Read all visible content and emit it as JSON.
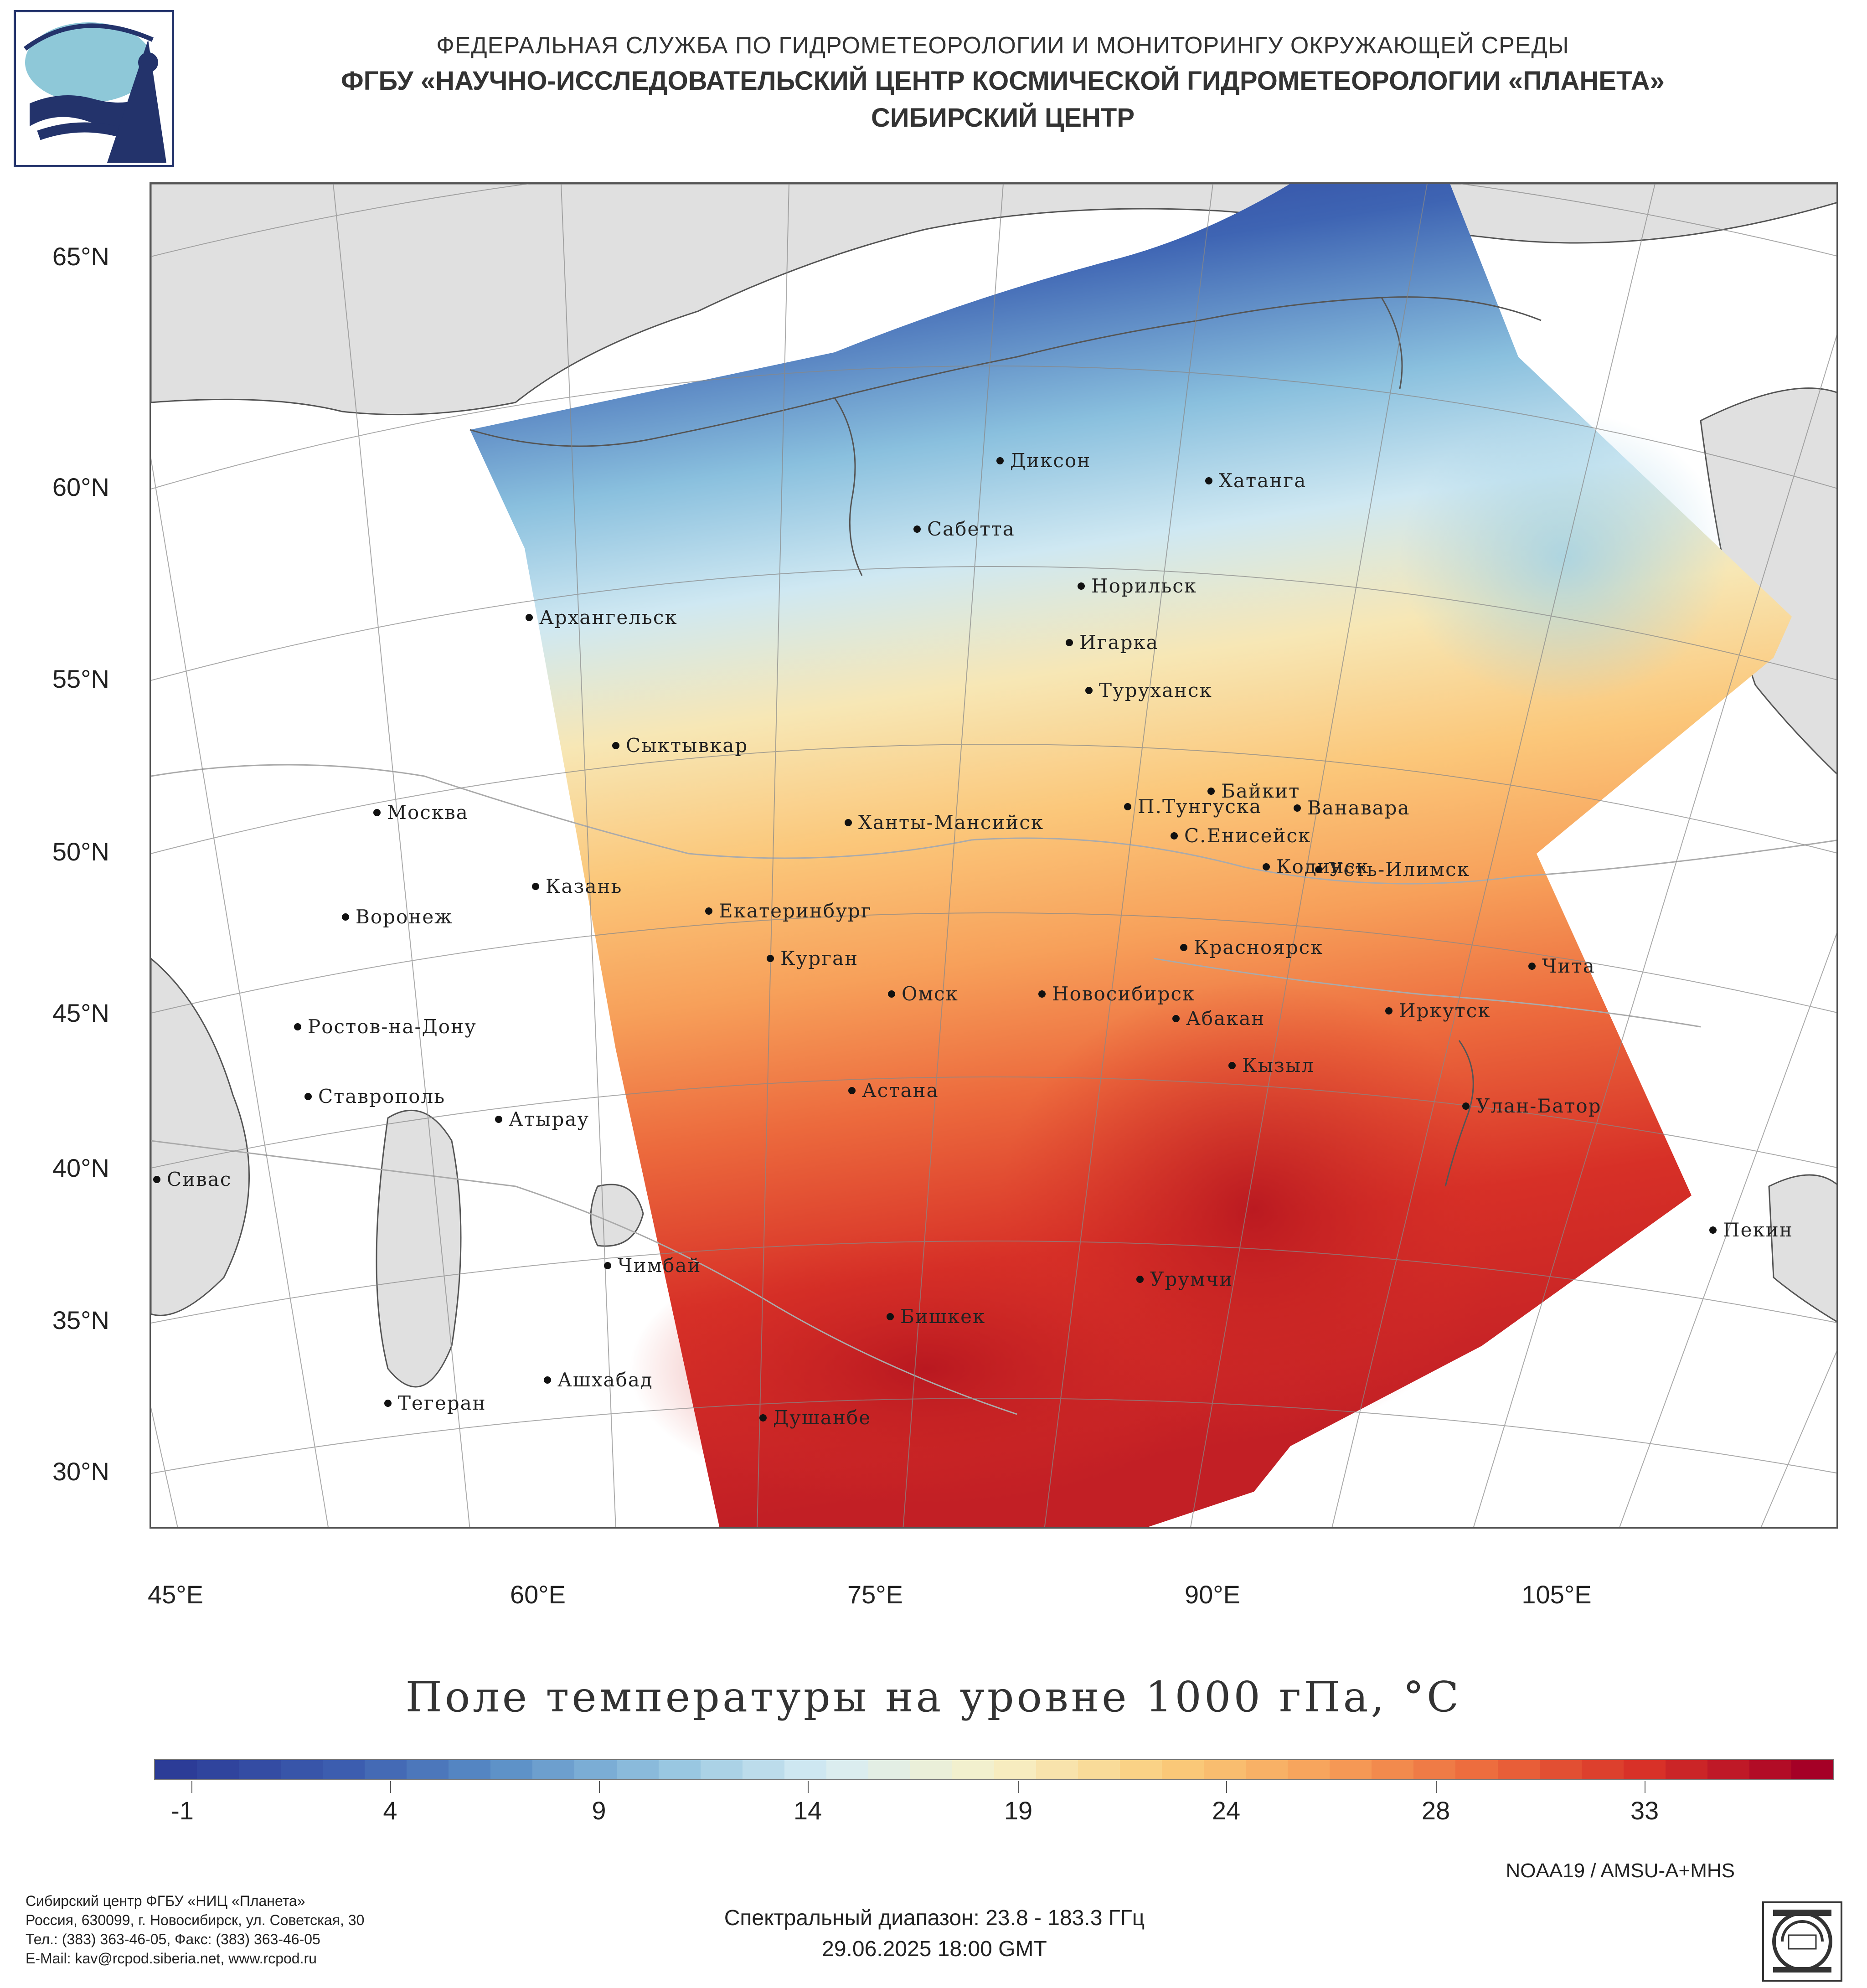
{
  "header": {
    "line1": "ФЕДЕРАЛЬНАЯ СЛУЖБА ПО ГИДРОМЕТЕОРОЛОГИИ И МОНИТОРИНГУ ОКРУЖАЮЩЕЙ СРЕДЫ",
    "line2": "ФГБУ «НАУЧНО-ИССЛЕДОВАТЕЛЬСКИЙ ЦЕНТР КОСМИЧЕСКОЙ ГИДРОМЕТЕОРОЛОГИИ «ПЛАНЕТА»",
    "line3": "СИБИРСКИЙ ЦЕНТР",
    "logo_icon": "planeta-logo-icon"
  },
  "map": {
    "title": "Поле температуры на уровне 1000 гПа, °C",
    "lat_labels": [
      "65°N",
      "60°N",
      "55°N",
      "50°N",
      "45°N",
      "40°N",
      "35°N",
      "30°N"
    ],
    "lon_labels": [
      "45°E",
      "60°E",
      "75°E",
      "90°E",
      "105°E"
    ],
    "cities": [
      {
        "name": "Диксон"
      },
      {
        "name": "Хатанга"
      },
      {
        "name": "Сабетта"
      },
      {
        "name": "Норильск"
      },
      {
        "name": "Архангельск"
      },
      {
        "name": "Игарка"
      },
      {
        "name": "Туруханск"
      },
      {
        "name": "Сыктывкар"
      },
      {
        "name": "Байкит"
      },
      {
        "name": "П.Тунгуска"
      },
      {
        "name": "Ванавара"
      },
      {
        "name": "Москва"
      },
      {
        "name": "Ханты-Мансийск"
      },
      {
        "name": "С.Енисейск"
      },
      {
        "name": "Кодинск"
      },
      {
        "name": "Усть-Илимск"
      },
      {
        "name": "Казань"
      },
      {
        "name": "Екатеринбург"
      },
      {
        "name": "Воронеж"
      },
      {
        "name": "Красноярск"
      },
      {
        "name": "Курган"
      },
      {
        "name": "Чита"
      },
      {
        "name": "Омск"
      },
      {
        "name": "Новосибирск"
      },
      {
        "name": "Иркутск"
      },
      {
        "name": "Ростов-на-Дону"
      },
      {
        "name": "Абакан"
      },
      {
        "name": "Кызыл"
      },
      {
        "name": "Ставрополь"
      },
      {
        "name": "Астана"
      },
      {
        "name": "Улан-Батор"
      },
      {
        "name": "Атырау"
      },
      {
        "name": "Сивас"
      },
      {
        "name": "Пекин"
      },
      {
        "name": "Чимбай"
      },
      {
        "name": "Урумчи"
      },
      {
        "name": "Бишкек"
      },
      {
        "name": "Ашхабад"
      },
      {
        "name": "Тегеран"
      },
      {
        "name": "Душанбе"
      }
    ]
  },
  "colorbar": {
    "ticks": [
      "-1",
      "4",
      "9",
      "14",
      "19",
      "24",
      "28",
      "33"
    ],
    "colors": [
      "#2c3c97",
      "#3b5cae",
      "#5b8fc7",
      "#94c4df",
      "#d8edf4",
      "#f6f0c8",
      "#fbcf7e",
      "#f7a25a",
      "#ec6a3d",
      "#d73027",
      "#a50026"
    ]
  },
  "footer": {
    "instrument": "NOAA19 / AMSU-A+MHS",
    "org_line1": "Сибирский центр ФГБУ «НИЦ «Планета»",
    "org_line2": "Россия, 630099, г. Новосибирск, ул. Советская, 30",
    "org_line3": "Тел.: (383) 363-46-05, Факс: (383) 363-46-05",
    "org_line4": "E-Mail: kav@rcpod.siberia.net, www.rcpod.ru",
    "spectral": "Спектральный диапазон: 23.8 - 183.3 ГГц",
    "datetime": "29.06.2025 18:00 GMT",
    "iso_badge_icon": "iso-9001-badge-icon"
  }
}
